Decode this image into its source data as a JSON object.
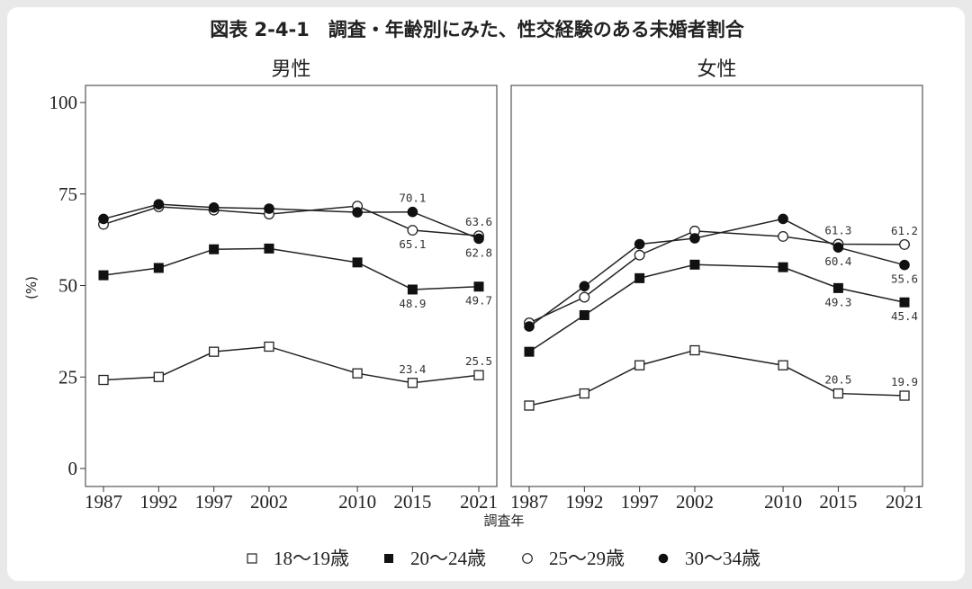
{
  "chart_data": {
    "type": "line",
    "title": "図表 2-4-1　調査・年齢別にみた、性交経験のある未婚者割合",
    "xlabel": "調査年",
    "ylabel": "(%)",
    "ylim": [
      0,
      100
    ],
    "y_ticks": [
      0,
      25,
      50,
      75,
      100
    ],
    "x_ticks": [
      1987,
      1992,
      1997,
      2002,
      2010,
      2015,
      2021
    ],
    "legend_position": "bottom",
    "series_styles": [
      {
        "name": "18〜19歳",
        "marker": "square-open"
      },
      {
        "name": "20〜24歳",
        "marker": "square-filled"
      },
      {
        "name": "25〜29歳",
        "marker": "circle-open"
      },
      {
        "name": "30〜34歳",
        "marker": "circle-filled"
      }
    ],
    "panels": [
      {
        "title": "男性",
        "series": [
          {
            "name": "18〜19歳",
            "values": [
              24.2,
              25.0,
              31.9,
              33.3,
              26.0,
              23.4,
              25.5
            ]
          },
          {
            "name": "20〜24歳",
            "values": [
              52.8,
              54.8,
              59.9,
              60.1,
              56.3,
              48.9,
              49.7
            ]
          },
          {
            "name": "25〜29歳",
            "values": [
              66.7,
              71.5,
              70.6,
              69.5,
              71.7,
              65.1,
              63.6
            ]
          },
          {
            "name": "30〜34歳",
            "values": [
              68.2,
              72.2,
              71.3,
              71.0,
              70.0,
              70.1,
              62.8
            ]
          }
        ],
        "labels": [
          {
            "text": "70.1",
            "year": 2015,
            "value": 70.1,
            "pos": "above"
          },
          {
            "text": "65.1",
            "year": 2015,
            "value": 65.1,
            "pos": "below"
          },
          {
            "text": "63.6",
            "year": 2021,
            "value": 63.6,
            "pos": "above"
          },
          {
            "text": "62.8",
            "year": 2021,
            "value": 62.8,
            "pos": "below"
          },
          {
            "text": "48.9",
            "year": 2015,
            "value": 48.9,
            "pos": "below"
          },
          {
            "text": "49.7",
            "year": 2021,
            "value": 49.7,
            "pos": "below"
          },
          {
            "text": "23.4",
            "year": 2015,
            "value": 23.4,
            "pos": "above"
          },
          {
            "text": "25.5",
            "year": 2021,
            "value": 25.5,
            "pos": "above"
          }
        ]
      },
      {
        "title": "女性",
        "series": [
          {
            "name": "18〜19歳",
            "values": [
              17.2,
              20.5,
              28.2,
              32.3,
              28.2,
              20.5,
              19.9
            ]
          },
          {
            "name": "20〜24歳",
            "values": [
              31.9,
              41.9,
              52.0,
              55.7,
              55.0,
              49.3,
              45.4
            ]
          },
          {
            "name": "25〜29歳",
            "values": [
              39.8,
              46.8,
              58.3,
              64.9,
              63.4,
              61.3,
              61.2
            ]
          },
          {
            "name": "30〜34歳",
            "values": [
              38.8,
              49.8,
              61.3,
              62.9,
              68.2,
              60.4,
              55.6
            ]
          }
        ],
        "labels": [
          {
            "text": "61.3",
            "year": 2015,
            "value": 61.3,
            "pos": "above"
          },
          {
            "text": "61.2",
            "year": 2021,
            "value": 61.2,
            "pos": "above"
          },
          {
            "text": "60.4",
            "year": 2015,
            "value": 60.4,
            "pos": "below"
          },
          {
            "text": "55.6",
            "year": 2021,
            "value": 55.6,
            "pos": "below"
          },
          {
            "text": "49.3",
            "year": 2015,
            "value": 49.3,
            "pos": "below"
          },
          {
            "text": "45.4",
            "year": 2021,
            "value": 45.4,
            "pos": "below"
          },
          {
            "text": "20.5",
            "year": 2015,
            "value": 20.5,
            "pos": "above"
          },
          {
            "text": "19.9",
            "year": 2021,
            "value": 19.9,
            "pos": "above"
          }
        ]
      }
    ]
  }
}
